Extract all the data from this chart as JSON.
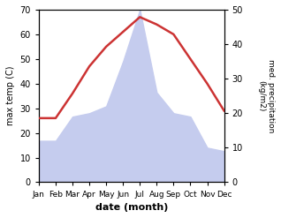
{
  "months": [
    "Jan",
    "Feb",
    "Mar",
    "Apr",
    "May",
    "Jun",
    "Jul",
    "Aug",
    "Sep",
    "Oct",
    "Nov",
    "Dec"
  ],
  "temperature": [
    26,
    26,
    36,
    47,
    55,
    61,
    67,
    64,
    60,
    50,
    40,
    29
  ],
  "precipitation": [
    12,
    12,
    19,
    20,
    22,
    35,
    50,
    26,
    20,
    19,
    10,
    9
  ],
  "temp_ylim": [
    0,
    70
  ],
  "precip_ylim": [
    0,
    50
  ],
  "temp_color": "#cc3333",
  "precip_fill_color": "#c5ccee",
  "precip_edge_color": "#aabbdd",
  "xlabel": "date (month)",
  "ylabel_left": "max temp (C)",
  "ylabel_right": "med. precipitation\n(kg/m2)",
  "background_color": "#ffffff",
  "line_width": 1.8
}
